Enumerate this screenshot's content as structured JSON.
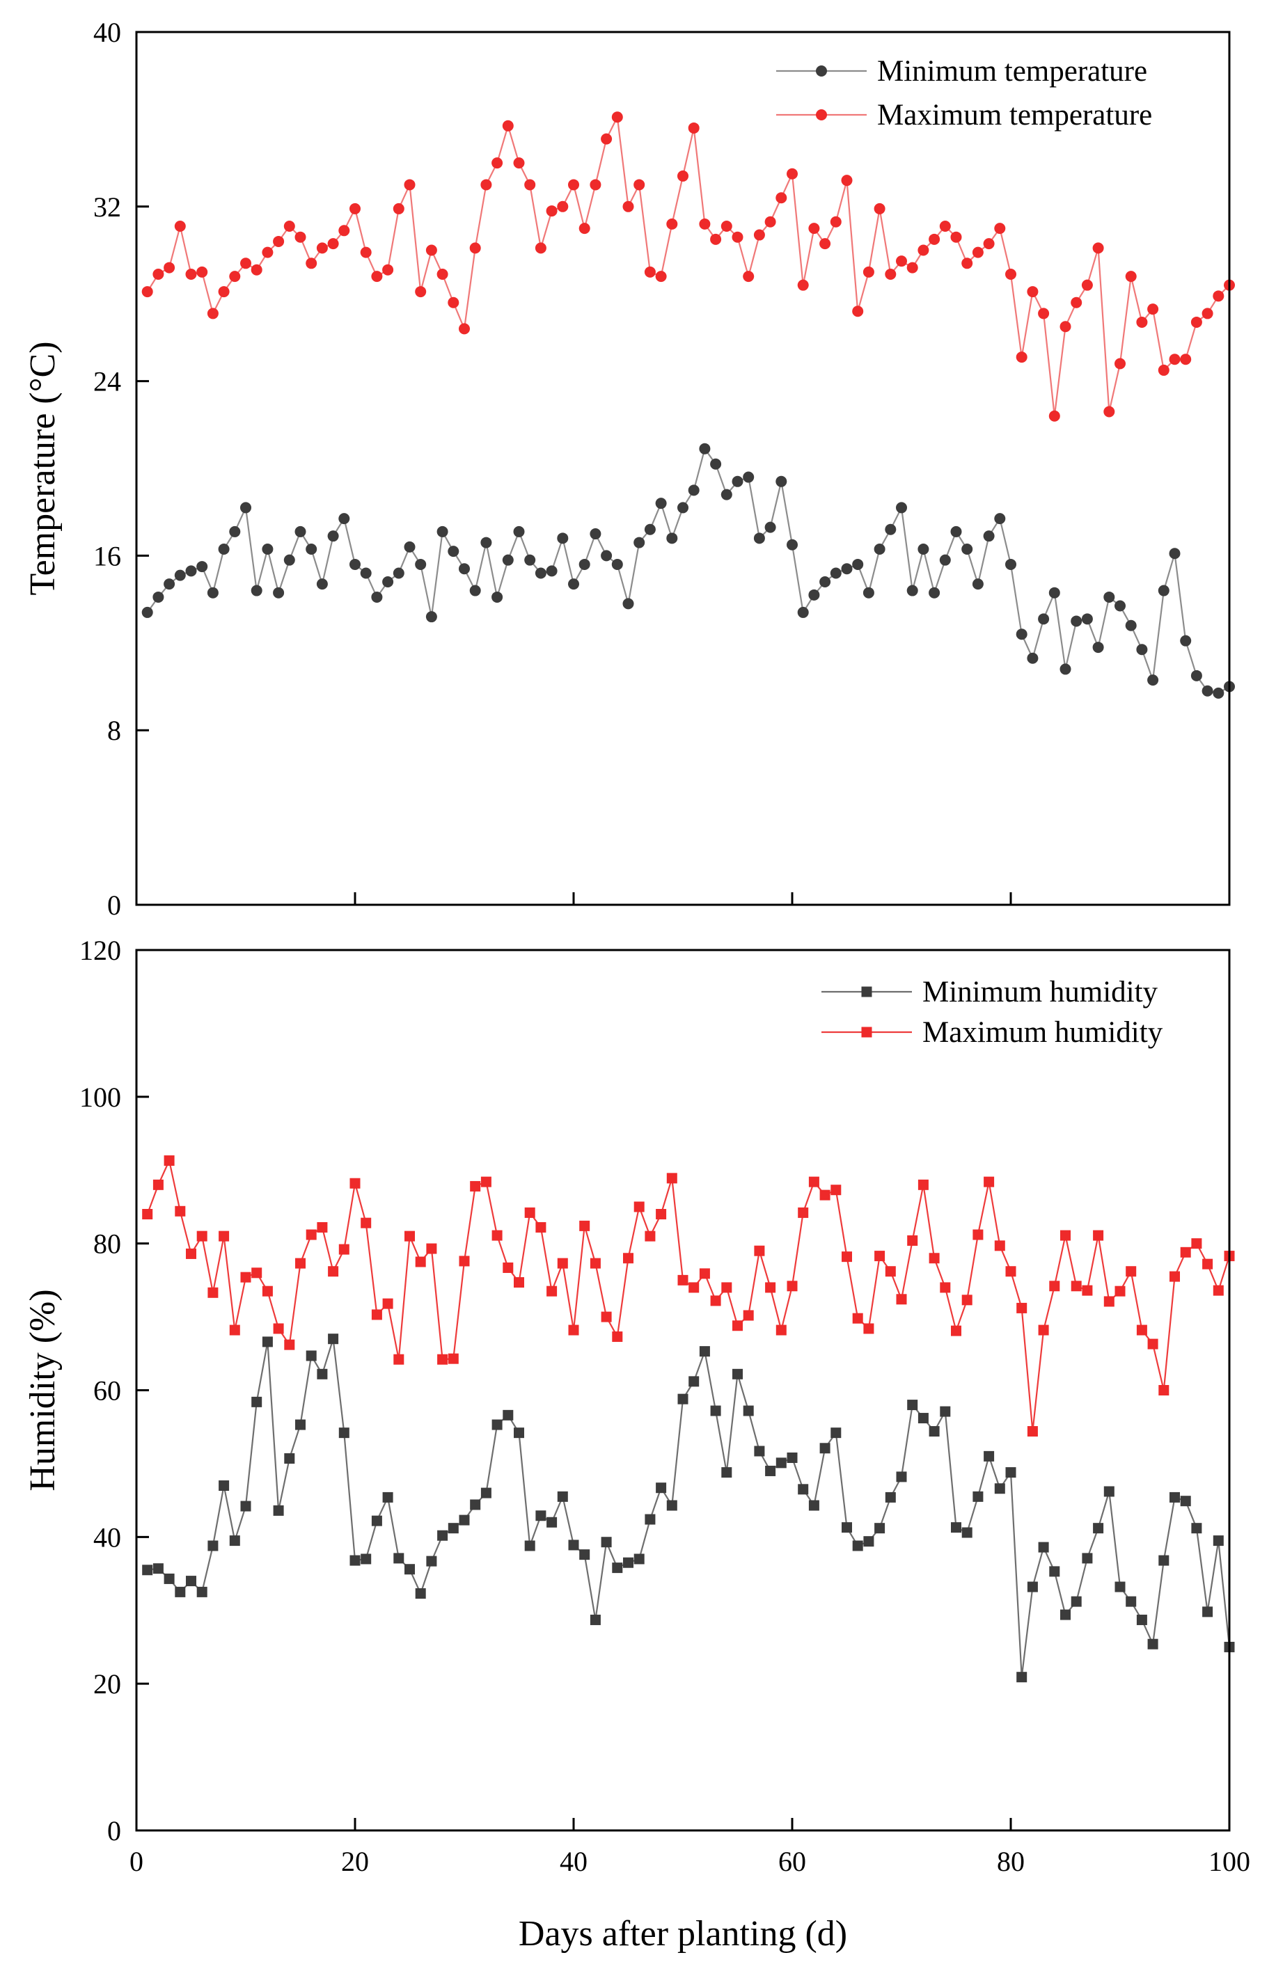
{
  "chart_data": [
    {
      "type": "line",
      "id": "temperature",
      "ylabel": "Temperature (°C)",
      "xlabel": "",
      "xlim": [
        0,
        100
      ],
      "ylim": [
        0,
        40
      ],
      "yticks": [
        "0",
        "8",
        "16",
        "24",
        "32",
        "40"
      ],
      "x": [
        1,
        2,
        3,
        4,
        5,
        6,
        7,
        8,
        9,
        10,
        11,
        12,
        13,
        14,
        15,
        16,
        17,
        18,
        19,
        20,
        21,
        22,
        23,
        24,
        25,
        26,
        27,
        28,
        29,
        30,
        31,
        32,
        33,
        34,
        35,
        36,
        37,
        38,
        39,
        40,
        41,
        42,
        43,
        44,
        45,
        46,
        47,
        48,
        49,
        50,
        51,
        52,
        53,
        54,
        55,
        56,
        57,
        58,
        59,
        60,
        61,
        62,
        63,
        64,
        65,
        66,
        67,
        68,
        69,
        70,
        71,
        72,
        73,
        74,
        75,
        76,
        77,
        78,
        79,
        80,
        81,
        82,
        83,
        84,
        85,
        86,
        87,
        88,
        89,
        90,
        91,
        92,
        93,
        94,
        95,
        96,
        97,
        98,
        99,
        100
      ],
      "series": [
        {
          "name": "Minimum temperature",
          "color": "#3c3c3c",
          "line_color": "#8c8c8c",
          "marker": "circle",
          "values": [
            13.4,
            14.1,
            14.7,
            15.1,
            15.3,
            15.5,
            14.3,
            16.3,
            17.1,
            18.2,
            14.4,
            16.3,
            14.3,
            15.8,
            17.1,
            16.3,
            14.7,
            16.9,
            17.7,
            15.6,
            15.2,
            14.1,
            14.8,
            15.2,
            16.4,
            15.6,
            13.2,
            17.1,
            16.2,
            15.4,
            14.4,
            16.6,
            14.1,
            15.8,
            17.1,
            15.8,
            15.2,
            15.3,
            16.8,
            14.7,
            15.6,
            17.0,
            16.0,
            15.6,
            13.8,
            16.6,
            17.2,
            18.4,
            16.8,
            18.2,
            19.0,
            20.9,
            20.2,
            18.8,
            19.4,
            19.6,
            16.8,
            17.3,
            19.4,
            16.5,
            13.4,
            14.2,
            14.8,
            15.2,
            15.4,
            15.6,
            14.3,
            16.3,
            17.2,
            18.2,
            14.4,
            16.3,
            14.3,
            15.8,
            17.1,
            16.3,
            14.7,
            16.9,
            17.7,
            15.6,
            12.4,
            11.3,
            13.1,
            14.3,
            10.8,
            13.0,
            13.1,
            11.8,
            14.1,
            13.7,
            12.8,
            11.7,
            10.3,
            14.4,
            16.1,
            12.1,
            10.5,
            9.8,
            9.7,
            10.0
          ]
        },
        {
          "name": "Maximum temperature",
          "color": "#ee2a2a",
          "line_color": "#f07878",
          "marker": "circle",
          "values": [
            28.1,
            28.9,
            29.2,
            31.1,
            28.9,
            29.0,
            27.1,
            28.1,
            28.8,
            29.4,
            29.1,
            29.9,
            30.4,
            31.1,
            30.6,
            29.4,
            30.1,
            30.3,
            30.9,
            31.9,
            29.9,
            28.8,
            29.1,
            31.9,
            33.0,
            28.1,
            30.0,
            28.9,
            27.6,
            26.4,
            30.1,
            33.0,
            34.0,
            35.7,
            34.0,
            33.0,
            30.1,
            31.8,
            32.0,
            33.0,
            31.0,
            33.0,
            35.1,
            36.1,
            32.0,
            33.0,
            29.0,
            28.8,
            31.2,
            33.4,
            35.6,
            31.2,
            30.5,
            31.1,
            30.6,
            28.8,
            30.7,
            31.3,
            32.4,
            33.5,
            28.4,
            31.0,
            30.3,
            31.3,
            33.2,
            27.2,
            29.0,
            31.9,
            28.9,
            29.5,
            29.2,
            30.0,
            30.5,
            31.1,
            30.6,
            29.4,
            29.9,
            30.3,
            31.0,
            28.9,
            25.1,
            28.1,
            27.1,
            22.4,
            26.5,
            27.6,
            28.4,
            30.1,
            22.6,
            24.8,
            28.8,
            26.7,
            27.3,
            24.5,
            25.0,
            25.0,
            26.7,
            27.1,
            27.9,
            28.4
          ]
        }
      ]
    },
    {
      "type": "line",
      "id": "humidity",
      "ylabel": "Humidity (%)",
      "xlabel": "Days after planting (d)",
      "xlim": [
        0,
        100
      ],
      "ylim": [
        0,
        120
      ],
      "xticks": [
        "0",
        "20",
        "40",
        "60",
        "80",
        "100"
      ],
      "yticks": [
        "0",
        "20",
        "40",
        "60",
        "80",
        "100",
        "120"
      ],
      "x": [
        1,
        2,
        3,
        4,
        5,
        6,
        7,
        8,
        9,
        10,
        11,
        12,
        13,
        14,
        15,
        16,
        17,
        18,
        19,
        20,
        21,
        22,
        23,
        24,
        25,
        26,
        27,
        28,
        29,
        30,
        31,
        32,
        33,
        34,
        35,
        36,
        37,
        38,
        39,
        40,
        41,
        42,
        43,
        44,
        45,
        46,
        47,
        48,
        49,
        50,
        51,
        52,
        53,
        54,
        55,
        56,
        57,
        58,
        59,
        60,
        61,
        62,
        63,
        64,
        65,
        66,
        67,
        68,
        69,
        70,
        71,
        72,
        73,
        74,
        75,
        76,
        77,
        78,
        79,
        80,
        81,
        82,
        83,
        84,
        85,
        86,
        87,
        88,
        89,
        90,
        91,
        92,
        93,
        94,
        95,
        96,
        97,
        98,
        99,
        100
      ],
      "series": [
        {
          "name": "Minimum humidity",
          "color": "#3c3c3c",
          "line_color": "#6e6e6e",
          "marker": "square",
          "values": [
            35.5,
            35.7,
            34.3,
            32.5,
            34.0,
            32.5,
            38.8,
            47.0,
            39.5,
            44.2,
            58.4,
            66.6,
            43.6,
            50.7,
            55.3,
            64.7,
            62.2,
            67.0,
            54.2,
            36.8,
            37.0,
            42.2,
            45.4,
            37.1,
            35.6,
            32.3,
            36.7,
            40.2,
            41.2,
            42.3,
            44.4,
            46.0,
            55.3,
            56.6,
            54.2,
            38.8,
            42.9,
            42.0,
            45.5,
            38.9,
            37.6,
            28.7,
            39.3,
            35.8,
            36.5,
            37.0,
            42.4,
            46.7,
            44.3,
            58.8,
            61.2,
            65.3,
            57.2,
            48.8,
            62.2,
            57.2,
            51.7,
            49.0,
            50.1,
            50.8,
            46.5,
            44.3,
            52.1,
            54.2,
            41.3,
            38.8,
            39.4,
            41.2,
            45.4,
            48.2,
            58.0,
            56.2,
            54.4,
            57.1,
            41.3,
            40.6,
            45.5,
            51.0,
            46.6,
            48.8,
            20.9,
            33.2,
            38.6,
            35.3,
            29.4,
            31.2,
            37.1,
            41.2,
            46.2,
            33.2,
            31.2,
            28.7,
            25.4,
            36.8,
            45.4,
            44.9,
            41.2,
            29.8,
            39.5,
            25.0
          ]
        },
        {
          "name": "Maximum humidity",
          "color": "#ee2a2a",
          "line_color": "#ee3b3b",
          "marker": "square",
          "values": [
            84.0,
            88.0,
            91.3,
            84.4,
            78.6,
            81.0,
            73.3,
            81.0,
            68.2,
            75.4,
            76.0,
            73.5,
            68.4,
            66.2,
            77.3,
            81.2,
            82.2,
            76.2,
            79.2,
            88.2,
            82.8,
            70.3,
            71.8,
            64.2,
            81.0,
            77.5,
            79.3,
            64.2,
            64.3,
            77.6,
            87.8,
            88.4,
            81.1,
            76.7,
            74.7,
            84.2,
            82.2,
            73.5,
            77.3,
            68.2,
            82.4,
            77.3,
            70.0,
            67.3,
            78.0,
            85.0,
            81.0,
            84.0,
            88.9,
            75.0,
            74.0,
            75.9,
            72.2,
            74.0,
            68.8,
            70.2,
            79.0,
            74.0,
            68.2,
            74.2,
            84.2,
            88.4,
            86.6,
            87.3,
            78.2,
            69.8,
            68.4,
            78.3,
            76.2,
            72.4,
            80.4,
            88.0,
            78.0,
            74.0,
            68.1,
            72.3,
            81.2,
            88.4,
            79.7,
            76.2,
            71.2,
            54.4,
            68.2,
            74.2,
            81.1,
            74.2,
            73.6,
            81.1,
            72.1,
            73.5,
            76.2,
            68.2,
            66.3,
            60.0,
            75.5,
            78.8,
            80.0,
            77.2,
            73.6,
            78.3
          ]
        }
      ]
    }
  ]
}
